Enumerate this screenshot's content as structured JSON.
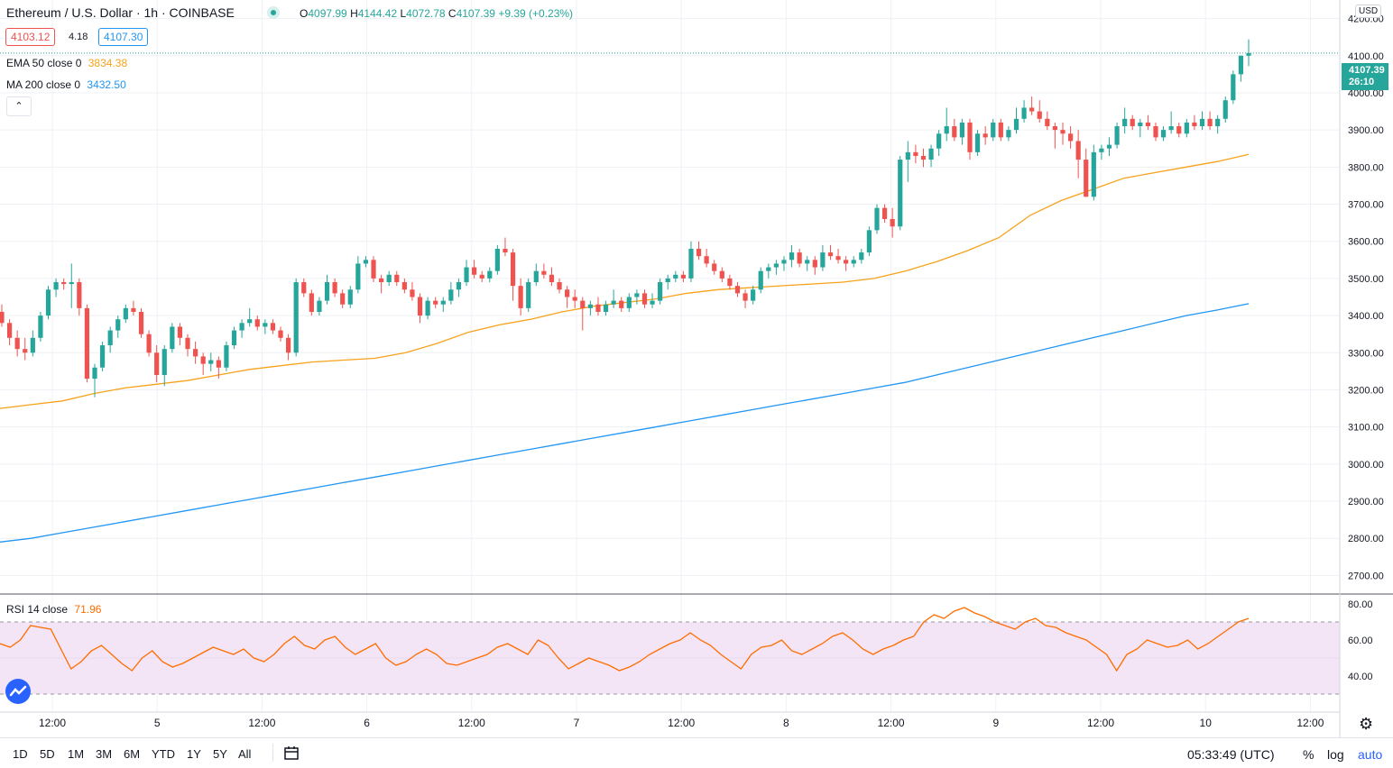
{
  "header": {
    "symbol": "Ethereum / U.S. Dollar · 1h · COINBASE",
    "o_label": "O",
    "o_value": "4097.99",
    "h_label": "H",
    "h_value": "4144.42",
    "l_label": "L",
    "l_value": "4072.78",
    "c_label": "C",
    "c_value": "4107.39",
    "change": "+9.39 (+0.23%)",
    "sell_price": "4103.12",
    "spread": "4.18",
    "buy_price": "4107.30"
  },
  "indicators": {
    "ema_label": "EMA 50 close 0",
    "ema_value": "3834.38",
    "ma_label": "MA 200 close 0",
    "ma_value": "3432.50",
    "rsi_label": "RSI 14 close",
    "rsi_value": "71.96"
  },
  "price_axis": {
    "currency": "USD",
    "last_price": "4107.39",
    "countdown": "26:10",
    "ticks": [
      "4200.00",
      "4100.00",
      "4000.00",
      "3900.00",
      "3800.00",
      "3700.00",
      "3600.00",
      "3500.00",
      "3400.00",
      "3300.00",
      "3200.00",
      "3100.00",
      "3000.00",
      "2900.00",
      "2800.00",
      "2700.00"
    ],
    "rsi_ticks": [
      "80.00",
      "60.00",
      "40.00"
    ]
  },
  "time_axis": {
    "ticks": [
      "12:00",
      "5",
      "12:00",
      "6",
      "12:00",
      "7",
      "12:00",
      "8",
      "12:00",
      "9",
      "12:00",
      "10",
      "12:00"
    ]
  },
  "bottom_bar": {
    "timeframes": [
      "1D",
      "5D",
      "1M",
      "3M",
      "6M",
      "YTD",
      "1Y",
      "5Y",
      "All"
    ],
    "clock": "05:33:49 (UTC)",
    "percent": "%",
    "log": "log",
    "auto": "auto"
  },
  "colors": {
    "up": "#26a69a",
    "down": "#ef5350",
    "ema": "#f7a21b",
    "ma": "#2196f3",
    "rsi": "#ff6d00",
    "rsi_band": "#f3e5f5",
    "grid": "#eef1f5"
  },
  "chart_data": [
    {
      "type": "candlestick",
      "title": "Ethereum / U.S. Dollar · 1h · COINBASE",
      "ylim": [
        2650,
        4250
      ],
      "x_ticks": [
        "12:00",
        "5",
        "12:00",
        "6",
        "12:00",
        "7",
        "12:00",
        "8",
        "12:00",
        "9",
        "12:00",
        "10",
        "12:00"
      ],
      "candles": [
        [
          3410,
          3430,
          3370,
          3380
        ],
        [
          3380,
          3390,
          3320,
          3340
        ],
        [
          3340,
          3360,
          3290,
          3310
        ],
        [
          3310,
          3340,
          3280,
          3300
        ],
        [
          3300,
          3360,
          3290,
          3340
        ],
        [
          3340,
          3410,
          3330,
          3400
        ],
        [
          3400,
          3480,
          3390,
          3470
        ],
        [
          3470,
          3500,
          3450,
          3490
        ],
        [
          3490,
          3500,
          3470,
          3485
        ],
        [
          3485,
          3540,
          3420,
          3490
        ],
        [
          3490,
          3500,
          3400,
          3420
        ],
        [
          3420,
          3430,
          3220,
          3230
        ],
        [
          3230,
          3270,
          3180,
          3260
        ],
        [
          3260,
          3330,
          3250,
          3320
        ],
        [
          3320,
          3370,
          3300,
          3360
        ],
        [
          3360,
          3400,
          3340,
          3390
        ],
        [
          3390,
          3430,
          3380,
          3420
        ],
        [
          3420,
          3440,
          3400,
          3410
        ],
        [
          3410,
          3420,
          3340,
          3350
        ],
        [
          3350,
          3360,
          3290,
          3300
        ],
        [
          3300,
          3320,
          3220,
          3240
        ],
        [
          3240,
          3320,
          3210,
          3310
        ],
        [
          3310,
          3380,
          3300,
          3370
        ],
        [
          3370,
          3380,
          3320,
          3340
        ],
        [
          3340,
          3350,
          3290,
          3310
        ],
        [
          3310,
          3330,
          3270,
          3290
        ],
        [
          3290,
          3300,
          3240,
          3270
        ],
        [
          3270,
          3300,
          3250,
          3280
        ],
        [
          3280,
          3290,
          3230,
          3260
        ],
        [
          3260,
          3330,
          3250,
          3320
        ],
        [
          3320,
          3370,
          3310,
          3360
        ],
        [
          3360,
          3390,
          3340,
          3380
        ],
        [
          3380,
          3420,
          3370,
          3390
        ],
        [
          3390,
          3400,
          3360,
          3370
        ],
        [
          3370,
          3390,
          3350,
          3380
        ],
        [
          3380,
          3390,
          3350,
          3360
        ],
        [
          3360,
          3370,
          3330,
          3340
        ],
        [
          3340,
          3350,
          3280,
          3300
        ],
        [
          3300,
          3500,
          3290,
          3490
        ],
        [
          3490,
          3500,
          3450,
          3460
        ],
        [
          3460,
          3470,
          3400,
          3410
        ],
        [
          3410,
          3450,
          3400,
          3440
        ],
        [
          3440,
          3510,
          3430,
          3490
        ],
        [
          3490,
          3500,
          3450,
          3460
        ],
        [
          3460,
          3470,
          3420,
          3430
        ],
        [
          3430,
          3480,
          3420,
          3470
        ],
        [
          3470,
          3560,
          3460,
          3540
        ],
        [
          3540,
          3560,
          3530,
          3550
        ],
        [
          3550,
          3560,
          3490,
          3500
        ],
        [
          3500,
          3510,
          3460,
          3490
        ],
        [
          3490,
          3520,
          3480,
          3510
        ],
        [
          3510,
          3520,
          3480,
          3490
        ],
        [
          3490,
          3500,
          3460,
          3470
        ],
        [
          3470,
          3490,
          3440,
          3450
        ],
        [
          3450,
          3460,
          3380,
          3400
        ],
        [
          3400,
          3450,
          3390,
          3440
        ],
        [
          3440,
          3450,
          3420,
          3430
        ],
        [
          3430,
          3450,
          3410,
          3440
        ],
        [
          3440,
          3490,
          3430,
          3470
        ],
        [
          3470,
          3500,
          3450,
          3490
        ],
        [
          3490,
          3550,
          3480,
          3530
        ],
        [
          3530,
          3550,
          3500,
          3510
        ],
        [
          3510,
          3520,
          3490,
          3500
        ],
        [
          3500,
          3530,
          3490,
          3520
        ],
        [
          3520,
          3590,
          3510,
          3580
        ],
        [
          3580,
          3610,
          3560,
          3570
        ],
        [
          3570,
          3580,
          3440,
          3480
        ],
        [
          3480,
          3500,
          3400,
          3420
        ],
        [
          3420,
          3500,
          3410,
          3490
        ],
        [
          3490,
          3540,
          3480,
          3520
        ],
        [
          3520,
          3540,
          3500,
          3510
        ],
        [
          3510,
          3530,
          3480,
          3490
        ],
        [
          3490,
          3500,
          3460,
          3470
        ],
        [
          3470,
          3480,
          3420,
          3450
        ],
        [
          3450,
          3470,
          3420,
          3440
        ],
        [
          3440,
          3450,
          3360,
          3420
        ],
        [
          3420,
          3440,
          3400,
          3430
        ],
        [
          3430,
          3450,
          3400,
          3410
        ],
        [
          3410,
          3440,
          3400,
          3430
        ],
        [
          3430,
          3470,
          3420,
          3440
        ],
        [
          3440,
          3450,
          3410,
          3420
        ],
        [
          3420,
          3460,
          3410,
          3450
        ],
        [
          3450,
          3470,
          3430,
          3460
        ],
        [
          3460,
          3470,
          3420,
          3430
        ],
        [
          3430,
          3460,
          3420,
          3440
        ],
        [
          3440,
          3500,
          3430,
          3490
        ],
        [
          3490,
          3510,
          3470,
          3500
        ],
        [
          3500,
          3520,
          3490,
          3510
        ],
        [
          3510,
          3520,
          3490,
          3500
        ],
        [
          3500,
          3600,
          3490,
          3580
        ],
        [
          3580,
          3600,
          3550,
          3560
        ],
        [
          3560,
          3580,
          3530,
          3540
        ],
        [
          3540,
          3550,
          3510,
          3520
        ],
        [
          3520,
          3530,
          3490,
          3500
        ],
        [
          3500,
          3510,
          3470,
          3480
        ],
        [
          3480,
          3490,
          3450,
          3460
        ],
        [
          3460,
          3470,
          3420,
          3440
        ],
        [
          3440,
          3480,
          3430,
          3470
        ],
        [
          3470,
          3530,
          3460,
          3520
        ],
        [
          3520,
          3540,
          3500,
          3530
        ],
        [
          3530,
          3550,
          3510,
          3540
        ],
        [
          3540,
          3560,
          3520,
          3550
        ],
        [
          3550,
          3590,
          3530,
          3570
        ],
        [
          3570,
          3580,
          3530,
          3540
        ],
        [
          3540,
          3560,
          3520,
          3550
        ],
        [
          3550,
          3560,
          3510,
          3530
        ],
        [
          3530,
          3590,
          3520,
          3570
        ],
        [
          3570,
          3590,
          3550,
          3560
        ],
        [
          3560,
          3580,
          3540,
          3550
        ],
        [
          3550,
          3560,
          3520,
          3540
        ],
        [
          3540,
          3560,
          3530,
          3550
        ],
        [
          3550,
          3580,
          3540,
          3570
        ],
        [
          3570,
          3640,
          3560,
          3630
        ],
        [
          3630,
          3700,
          3620,
          3690
        ],
        [
          3690,
          3700,
          3650,
          3660
        ],
        [
          3660,
          3690,
          3610,
          3640
        ],
        [
          3640,
          3830,
          3630,
          3820
        ],
        [
          3820,
          3870,
          3760,
          3840
        ],
        [
          3840,
          3860,
          3810,
          3830
        ],
        [
          3830,
          3850,
          3800,
          3820
        ],
        [
          3820,
          3860,
          3800,
          3850
        ],
        [
          3850,
          3900,
          3830,
          3890
        ],
        [
          3890,
          3960,
          3870,
          3910
        ],
        [
          3910,
          3930,
          3870,
          3880
        ],
        [
          3880,
          3930,
          3860,
          3920
        ],
        [
          3920,
          3930,
          3820,
          3840
        ],
        [
          3840,
          3900,
          3830,
          3890
        ],
        [
          3890,
          3910,
          3860,
          3880
        ],
        [
          3880,
          3930,
          3870,
          3920
        ],
        [
          3920,
          3930,
          3870,
          3880
        ],
        [
          3880,
          3910,
          3870,
          3900
        ],
        [
          3900,
          3960,
          3890,
          3930
        ],
        [
          3930,
          3980,
          3920,
          3960
        ],
        [
          3960,
          3990,
          3940,
          3950
        ],
        [
          3950,
          3980,
          3920,
          3930
        ],
        [
          3930,
          3950,
          3900,
          3910
        ],
        [
          3910,
          3920,
          3850,
          3900
        ],
        [
          3900,
          3920,
          3860,
          3890
        ],
        [
          3890,
          3910,
          3850,
          3870
        ],
        [
          3870,
          3900,
          3770,
          3820
        ],
        [
          3820,
          3850,
          3720,
          3720
        ],
        [
          3720,
          3860,
          3710,
          3840
        ],
        [
          3840,
          3860,
          3820,
          3850
        ],
        [
          3850,
          3880,
          3830,
          3860
        ],
        [
          3860,
          3920,
          3850,
          3910
        ],
        [
          3910,
          3960,
          3890,
          3930
        ],
        [
          3930,
          3940,
          3900,
          3910
        ],
        [
          3910,
          3930,
          3880,
          3920
        ],
        [
          3920,
          3940,
          3900,
          3910
        ],
        [
          3910,
          3920,
          3870,
          3880
        ],
        [
          3880,
          3910,
          3870,
          3900
        ],
        [
          3900,
          3950,
          3890,
          3910
        ],
        [
          3910,
          3920,
          3880,
          3890
        ],
        [
          3890,
          3930,
          3880,
          3920
        ],
        [
          3920,
          3940,
          3900,
          3910
        ],
        [
          3910,
          3950,
          3900,
          3930
        ],
        [
          3930,
          3950,
          3900,
          3910
        ],
        [
          3910,
          3940,
          3890,
          3930
        ],
        [
          3930,
          3990,
          3920,
          3980
        ],
        [
          3980,
          4060,
          3970,
          4050
        ],
        [
          4050,
          4100,
          4030,
          4100
        ],
        [
          4100,
          4144,
          4072,
          4107
        ]
      ],
      "ema_50": [
        3150,
        3160,
        3170,
        3190,
        3205,
        3215,
        3225,
        3240,
        3255,
        3265,
        3275,
        3280,
        3285,
        3300,
        3325,
        3355,
        3375,
        3390,
        3410,
        3425,
        3435,
        3445,
        3460,
        3470,
        3475,
        3480,
        3485,
        3490,
        3500,
        3520,
        3545,
        3575,
        3610,
        3670,
        3710,
        3740,
        3770,
        3785,
        3800,
        3815,
        3834
      ],
      "ma_200": [
        2790,
        2800,
        2815,
        2830,
        2845,
        2860,
        2875,
        2890,
        2905,
        2920,
        2935,
        2950,
        2965,
        2980,
        2995,
        3010,
        3025,
        3040,
        3055,
        3070,
        3085,
        3100,
        3115,
        3130,
        3145,
        3160,
        3175,
        3190,
        3205,
        3220,
        3240,
        3260,
        3280,
        3300,
        3320,
        3340,
        3360,
        3380,
        3400,
        3415,
        3432
      ]
    },
    {
      "type": "line",
      "title": "RSI 14 close",
      "ylim": [
        20,
        85
      ],
      "bands": [
        30,
        70
      ],
      "values": [
        58,
        56,
        60,
        68,
        67,
        66,
        55,
        44,
        48,
        54,
        57,
        52,
        47,
        43,
        50,
        54,
        48,
        45,
        47,
        50,
        53,
        56,
        54,
        52,
        55,
        50,
        48,
        52,
        58,
        62,
        57,
        55,
        60,
        62,
        56,
        52,
        55,
        58,
        50,
        46,
        48,
        52,
        55,
        52,
        47,
        46,
        48,
        50,
        52,
        56,
        58,
        55,
        52,
        60,
        57,
        50,
        44,
        47,
        50,
        48,
        46,
        43,
        45,
        48,
        52,
        55,
        58,
        60,
        64,
        60,
        57,
        52,
        48,
        44,
        52,
        56,
        57,
        60,
        54,
        52,
        55,
        58,
        62,
        64,
        60,
        55,
        52,
        55,
        57,
        60,
        62,
        70,
        74,
        72,
        76,
        78,
        75,
        73,
        70,
        68,
        66,
        70,
        72,
        68,
        67,
        64,
        62,
        60,
        56,
        52,
        43,
        52,
        55,
        60,
        58,
        56,
        57,
        60,
        55,
        58,
        62,
        66,
        70,
        72
      ]
    }
  ]
}
